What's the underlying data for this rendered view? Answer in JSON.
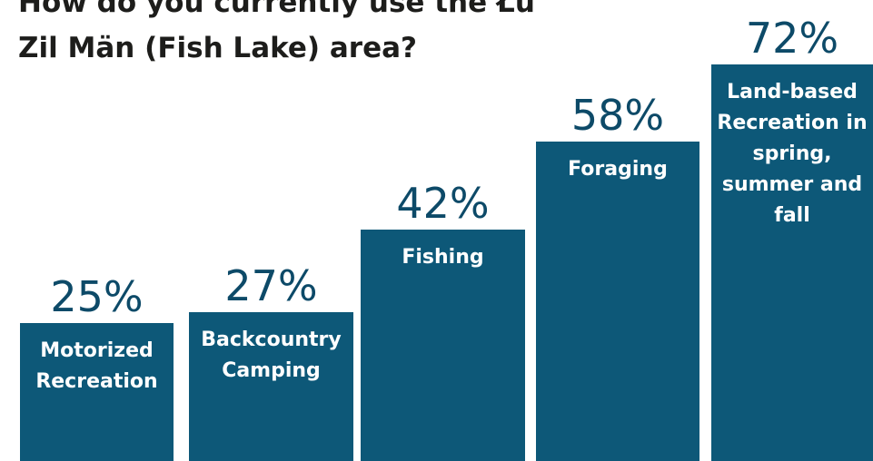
{
  "chart_data": {
    "type": "bar",
    "title": "How do you currently use the Łu Zil Män (Fish Lake) area?",
    "categories": [
      "Motorized Recreation",
      "Backcountry Camping",
      "Fishing",
      "Foraging",
      "Land-based Recreation in spring, summer and fall"
    ],
    "values": [
      25,
      27,
      42,
      58,
      72
    ],
    "value_labels": [
      "25%",
      "27%",
      "42%",
      "58%",
      "72%"
    ],
    "color": "#0d5878"
  }
}
